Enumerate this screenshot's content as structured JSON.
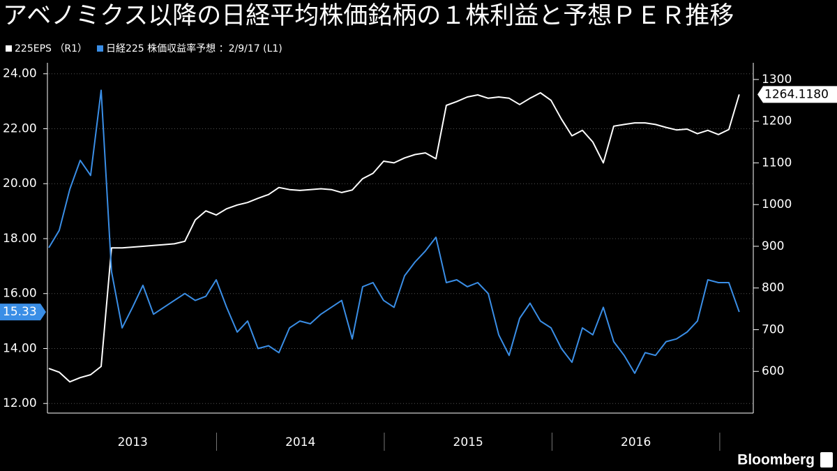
{
  "chart_data": {
    "type": "line",
    "title": "アベノミクス以降の日経平均株価銘柄の１株利益と予想ＰＥＲ推移",
    "source": "Bloomberg",
    "x": [
      2013.0,
      2013.062,
      2013.125,
      2013.187,
      2013.249,
      2013.312,
      2013.374,
      2013.437,
      2013.499,
      2013.561,
      2013.624,
      2013.686,
      2013.748,
      2013.811,
      2013.873,
      2013.936,
      2013.998,
      2014.06,
      2014.123,
      2014.185,
      2014.247,
      2014.31,
      2014.372,
      2014.435,
      2014.497,
      2014.559,
      2014.622,
      2014.684,
      2014.746,
      2014.809,
      2014.871,
      2014.933,
      2014.996,
      2015.058,
      2015.121,
      2015.183,
      2015.245,
      2015.308,
      2015.37,
      2015.432,
      2015.495,
      2015.557,
      2015.62,
      2015.682,
      2015.744,
      2015.807,
      2015.869,
      2015.931,
      2015.994,
      2016.056,
      2016.119,
      2016.181,
      2016.243,
      2016.306,
      2016.368,
      2016.43,
      2016.493,
      2016.555,
      2016.617,
      2016.68,
      2016.742,
      2016.805,
      2016.867,
      2016.929,
      2016.992,
      2017.054,
      2017.116
    ],
    "xlim": [
      2013,
      2017.2
    ],
    "xticks": [
      {
        "value": 2013.5,
        "label": "2013"
      },
      {
        "value": 2014.5,
        "label": "2014"
      },
      {
        "value": 2015.5,
        "label": "2015"
      },
      {
        "value": 2016.5,
        "label": "2016"
      }
    ],
    "ylim": [
      11.65,
      24.4
    ],
    "yticks": [
      {
        "value": 12,
        "label": "12.00"
      },
      {
        "value": 14,
        "label": "14.00"
      },
      {
        "value": 16,
        "label": "16.00"
      },
      {
        "value": 18,
        "label": "18.00"
      },
      {
        "value": 20,
        "label": "20.00"
      },
      {
        "value": 22,
        "label": "22.00"
      },
      {
        "value": 24,
        "label": "24.00"
      }
    ],
    "y2lim": [
      500,
      1340
    ],
    "y2ticks": [
      600,
      700,
      800,
      900,
      1000,
      1100,
      1200,
      1300
    ],
    "grid": true,
    "series": [
      {
        "name": "225EPS （R1）",
        "color": "#ffffff",
        "axis": "y2",
        "last": {
          "value": 1264.118,
          "label": "1264.1180"
        },
        "values": [
          607,
          598,
          575,
          585,
          592,
          612,
          896,
          896,
          898,
          900,
          902,
          904,
          906,
          912,
          963,
          985,
          975,
          990,
          999,
          1005,
          1015,
          1024,
          1041,
          1036,
          1034,
          1036,
          1038,
          1036,
          1029,
          1035,
          1062,
          1075,
          1104,
          1100,
          1112,
          1120,
          1124,
          1110,
          1238,
          1247,
          1258,
          1263,
          1255,
          1258,
          1255,
          1240,
          1255,
          1268,
          1250,
          1205,
          1165,
          1178,
          1150,
          1100,
          1188,
          1192,
          1196,
          1196,
          1192,
          1185,
          1179,
          1181,
          1170,
          1178,
          1168,
          1180,
          1264.118
        ]
      },
      {
        "name": "日経225 株価収益率予想 ：2/9/17 (L1)",
        "color": "#3a8ee6",
        "last": 15.33,
        "values": [
          17.67,
          18.3,
          19.8,
          20.85,
          20.3,
          23.4,
          16.8,
          14.75,
          15.5,
          16.3,
          15.25,
          15.5,
          15.75,
          16.0,
          15.75,
          15.9,
          16.5,
          15.5,
          14.6,
          15.0,
          14.0,
          14.1,
          13.85,
          14.75,
          15.0,
          14.9,
          15.25,
          15.5,
          15.75,
          14.35,
          16.25,
          16.4,
          15.75,
          15.5,
          16.65,
          17.15,
          17.55,
          18.05,
          16.4,
          16.5,
          16.25,
          16.4,
          16.0,
          14.5,
          13.75,
          15.1,
          15.65,
          15.0,
          14.75,
          14.0,
          13.5,
          14.75,
          14.5,
          15.5,
          14.25,
          13.75,
          13.1,
          13.85,
          13.75,
          14.25,
          14.35,
          14.6,
          15.0,
          16.5,
          16.4,
          16.4,
          15.33
        ]
      }
    ]
  }
}
